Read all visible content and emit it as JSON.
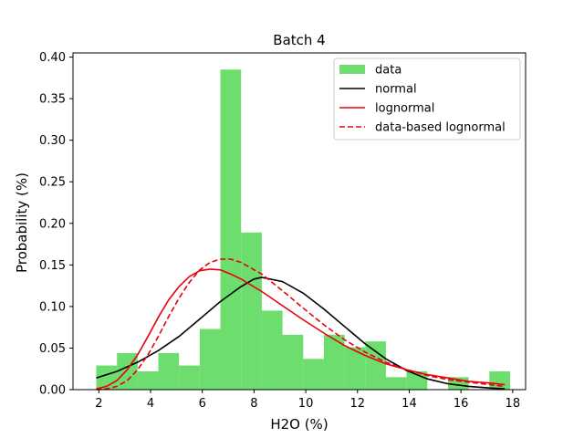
{
  "chart_data": {
    "type": "bar",
    "title": "Batch 4",
    "xlabel": "H2O (%)",
    "ylabel": "Probability (%)",
    "xlim": [
      1.0,
      18.5
    ],
    "ylim": [
      0.0,
      0.405
    ],
    "xticks": [
      2,
      4,
      6,
      8,
      10,
      12,
      14,
      16,
      18
    ],
    "yticks": [
      "0.00",
      "0.05",
      "0.10",
      "0.15",
      "0.20",
      "0.25",
      "0.30",
      "0.35",
      "0.40"
    ],
    "grid": false,
    "legend_position": "top-right",
    "histogram": {
      "name": "data",
      "color": "#6ddd6d",
      "bin_edges": [
        1.9,
        2.7,
        3.5,
        4.3,
        5.1,
        5.9,
        6.7,
        7.5,
        8.3,
        9.1,
        9.9,
        10.7,
        11.5,
        12.3,
        13.1,
        13.9,
        14.7,
        15.5,
        16.3,
        17.1,
        17.9
      ],
      "values": [
        0.029,
        0.044,
        0.022,
        0.044,
        0.029,
        0.073,
        0.385,
        0.189,
        0.095,
        0.066,
        0.037,
        0.066,
        0.051,
        0.058,
        0.015,
        0.022,
        0.0,
        0.015,
        0.0,
        0.022
      ]
    },
    "series": [
      {
        "name": "normal",
        "color": "#000000",
        "style": "solid",
        "x": [
          1.9,
          2.7,
          3.5,
          4.3,
          5.1,
          5.9,
          6.7,
          7.5,
          8.0,
          8.3,
          9.1,
          9.9,
          10.7,
          11.5,
          12.3,
          13.1,
          13.9,
          14.7,
          15.5,
          16.3,
          17.1,
          17.7
        ],
        "y": [
          0.014,
          0.022,
          0.033,
          0.047,
          0.064,
          0.085,
          0.106,
          0.124,
          0.133,
          0.135,
          0.13,
          0.116,
          0.097,
          0.076,
          0.055,
          0.037,
          0.023,
          0.013,
          0.007,
          0.004,
          0.002,
          0.001
        ]
      },
      {
        "name": "lognormal",
        "color": "#e8000b",
        "style": "solid",
        "x": [
          1.9,
          2.3,
          2.7,
          3.1,
          3.5,
          3.9,
          4.3,
          4.7,
          5.1,
          5.5,
          5.9,
          6.3,
          6.7,
          7.1,
          7.5,
          8.3,
          9.1,
          9.9,
          10.7,
          11.5,
          12.3,
          13.1,
          13.9,
          14.7,
          15.5,
          16.3,
          17.1,
          17.7
        ],
        "y": [
          0.001,
          0.004,
          0.011,
          0.024,
          0.042,
          0.064,
          0.087,
          0.108,
          0.124,
          0.136,
          0.143,
          0.145,
          0.144,
          0.139,
          0.133,
          0.118,
          0.101,
          0.084,
          0.068,
          0.053,
          0.041,
          0.031,
          0.024,
          0.018,
          0.014,
          0.01,
          0.008,
          0.006
        ]
      },
      {
        "name": "data-based lognormal",
        "color": "#e8000b",
        "style": "dashed",
        "x": [
          1.9,
          2.3,
          2.7,
          3.1,
          3.5,
          3.9,
          4.3,
          4.7,
          5.1,
          5.5,
          5.9,
          6.3,
          6.7,
          7.1,
          7.5,
          8.3,
          9.1,
          9.9,
          10.7,
          11.5,
          12.3,
          13.1,
          13.9,
          14.7,
          15.5,
          16.3,
          17.1,
          17.7
        ],
        "y": [
          0.0,
          0.001,
          0.004,
          0.011,
          0.024,
          0.042,
          0.064,
          0.088,
          0.11,
          0.129,
          0.144,
          0.153,
          0.157,
          0.157,
          0.153,
          0.139,
          0.119,
          0.098,
          0.078,
          0.06,
          0.045,
          0.033,
          0.024,
          0.017,
          0.012,
          0.009,
          0.006,
          0.004
        ]
      }
    ]
  }
}
